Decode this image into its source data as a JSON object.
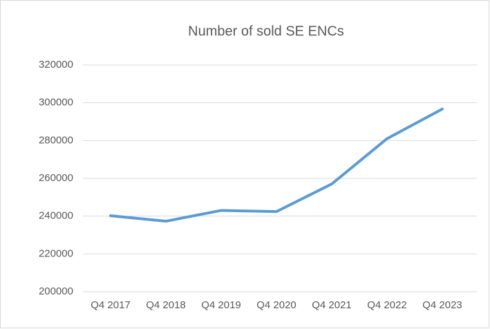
{
  "chart_data": {
    "type": "line",
    "title": "Number of sold SE ENCs",
    "categories": [
      "Q4 2017",
      "Q4 2018",
      "Q4 2019",
      "Q4 2020",
      "Q4 2021",
      "Q4 2022",
      "Q4 2023"
    ],
    "values": [
      240200,
      237300,
      243000,
      242400,
      257000,
      281000,
      296700
    ],
    "color": "#5b9bd5",
    "ylim": [
      200000,
      320000
    ],
    "yticks": [
      200000,
      220000,
      240000,
      260000,
      280000,
      300000,
      320000
    ],
    "grid": true
  }
}
